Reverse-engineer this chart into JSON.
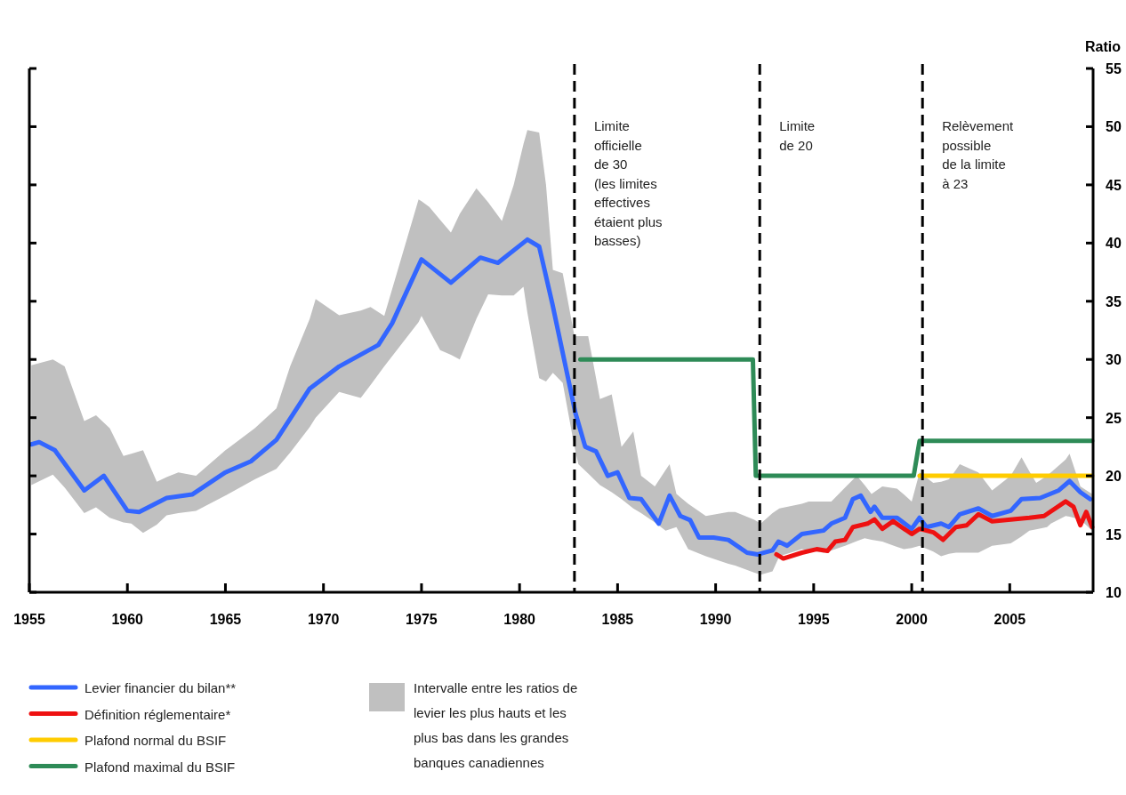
{
  "chart_data": {
    "type": "line",
    "ylabel": "Ratio",
    "xlim": [
      1955,
      2009.25
    ],
    "xticks": [
      1955,
      1960,
      1965,
      1970,
      1975,
      1980,
      1985,
      1990,
      1995,
      2000,
      2005
    ],
    "ylim": [
      10,
      55
    ],
    "yticks": [
      10,
      15,
      20,
      25,
      30,
      35,
      40,
      45,
      50,
      55
    ],
    "grid": false,
    "legend": "bottom",
    "marker": "none",
    "line_style": "solid",
    "series": [
      {
        "type": "area",
        "name": "Intervalle entre les ratios de levier les plus hauts et les plus bas dans les grandes banques canadiennes",
        "color": "#c0c0c0",
        "x": [
          1955.1,
          1956.2,
          1956.8,
          1957.8,
          1958.4,
          1959.1,
          1959.8,
          1960.2,
          1960.8,
          1961.5,
          1962.0,
          1962.6,
          1963.5,
          1965.0,
          1966.5,
          1967.6,
          1968.3,
          1969.3,
          1969.6,
          1970.8,
          1971.9,
          1972.4,
          1973.1,
          1974.85,
          1975.0,
          1975.4,
          1975.95,
          1976.5,
          1976.95,
          1977.8,
          1978.4,
          1979.1,
          1979.7,
          1980.2,
          1980.4,
          1981.0,
          1981.35,
          1981.7,
          1982.2,
          1982.8,
          1983.0,
          1983.5,
          1984.1,
          1984.7,
          1985.2,
          1985.8,
          1986.2,
          1986.9,
          1987.45,
          1987.65,
          1988.0,
          1988.6,
          1989.5,
          1990.65,
          1991.0,
          1991.95,
          1992.3,
          1992.9,
          1993.25,
          1994.4,
          1994.75,
          1995.5,
          1995.9,
          1996.6,
          1997.2,
          1997.6,
          1997.95,
          1998.5,
          1999.25,
          1999.6,
          2000.0,
          2000.4,
          2001.1,
          2001.5,
          2001.9,
          2002.25,
          2002.45,
          2003.4,
          2004.1,
          2005.05,
          2005.6,
          2006.0,
          2006.35,
          2006.9,
          2007.1,
          2007.85,
          2008.05,
          2008.6,
          2009.2
        ],
        "lower": [
          19.2,
          20.1,
          19.0,
          16.8,
          17.3,
          16.4,
          16.0,
          15.9,
          15.1,
          15.8,
          16.6,
          16.8,
          17.0,
          18.3,
          19.7,
          20.6,
          22.0,
          24.2,
          25.0,
          27.2,
          26.7,
          27.8,
          29.4,
          33.2,
          33.75,
          32.5,
          30.8,
          30.4,
          30.0,
          33.5,
          35.6,
          35.5,
          35.5,
          36.25,
          34.0,
          28.4,
          28.1,
          28.85,
          28.0,
          22.5,
          21.0,
          20.2,
          19.2,
          18.6,
          18.0,
          17.2,
          16.8,
          16.0,
          15.3,
          15.4,
          15.6,
          13.7,
          13.1,
          12.45,
          12.3,
          11.7,
          11.5,
          11.8,
          13.1,
          13.7,
          13.6,
          13.4,
          13.6,
          14.0,
          14.4,
          14.65,
          14.5,
          14.35,
          13.9,
          13.7,
          13.8,
          14.0,
          13.5,
          13.1,
          13.3,
          13.4,
          13.4,
          13.4,
          14.0,
          14.2,
          14.8,
          15.3,
          15.4,
          15.6,
          15.9,
          16.55,
          16.5,
          16.25,
          15.3
        ],
        "upper": [
          29.5,
          30.0,
          29.4,
          24.7,
          25.2,
          24.1,
          21.7,
          21.9,
          22.2,
          19.5,
          19.9,
          20.3,
          20.0,
          22.2,
          24.1,
          25.8,
          29.4,
          33.5,
          35.2,
          33.8,
          34.2,
          34.5,
          33.75,
          43.75,
          43.6,
          43.1,
          42.0,
          40.9,
          42.5,
          44.7,
          43.5,
          41.9,
          45.0,
          48.5,
          49.7,
          49.5,
          45.0,
          37.7,
          37.4,
          32.0,
          32.0,
          32.0,
          26.6,
          27.0,
          22.5,
          23.8,
          20.0,
          19.1,
          20.5,
          21.0,
          18.45,
          17.6,
          16.55,
          16.9,
          16.9,
          16.25,
          15.9,
          16.8,
          17.2,
          17.6,
          17.8,
          17.8,
          17.8,
          19.0,
          20.0,
          19.2,
          18.45,
          19.1,
          18.9,
          18.4,
          17.8,
          20.3,
          19.4,
          19.5,
          19.7,
          20.5,
          21.0,
          20.3,
          18.75,
          20.0,
          21.6,
          20.4,
          19.4,
          20.0,
          20.3,
          21.4,
          21.9,
          19.1,
          18.45
        ],
        "values": [
          null,
          null,
          null,
          null,
          null,
          null,
          null,
          null,
          null,
          null,
          null,
          null,
          null,
          null,
          null,
          null,
          null,
          null,
          null,
          null,
          null,
          null,
          null,
          null,
          null,
          null,
          null,
          null,
          null,
          null,
          null,
          null,
          null,
          null,
          null,
          null,
          null,
          null,
          null,
          null,
          null,
          null,
          null,
          null,
          null,
          null,
          null,
          null,
          null,
          null,
          null,
          null,
          null,
          null,
          null,
          null,
          null,
          null,
          null,
          null,
          null,
          null,
          null,
          null,
          null,
          null,
          null,
          null,
          null,
          null,
          null,
          null,
          null,
          null,
          null,
          null,
          null,
          null,
          null,
          null,
          null,
          null,
          null,
          null,
          null,
          null,
          null,
          null,
          null
        ]
      },
      {
        "name": "Levier financier du bilan**",
        "color": "#3366ff",
        "x": [
          1955.1,
          1955.5,
          1956.3,
          1957.8,
          1958.8,
          1960.0,
          1960.6,
          1962.0,
          1963.3,
          1965.0,
          1966.3,
          1967.6,
          1969.3,
          1970.8,
          1972.8,
          1973.5,
          1975.0,
          1976.5,
          1978.0,
          1978.9,
          1980.4,
          1981.0,
          1981.67,
          1982.85,
          1983.35,
          1983.9,
          1984.5,
          1985.0,
          1985.6,
          1986.2,
          1987.1,
          1987.65,
          1988.2,
          1988.7,
          1989.15,
          1989.9,
          1990.65,
          1991.6,
          1992.15,
          1992.9,
          1993.2,
          1993.65,
          1994.4,
          1995.5,
          1995.9,
          1996.6,
          1997.0,
          1997.4,
          1997.9,
          1998.1,
          1998.5,
          1999.25,
          2000.0,
          2000.4,
          2000.75,
          2001.5,
          2001.9,
          2002.45,
          2003.4,
          2004.1,
          2005.05,
          2005.6,
          2006.55,
          2007.5,
          2008.05,
          2008.6,
          2009.1
        ],
        "values": [
          22.7,
          22.9,
          22.2,
          18.75,
          20.0,
          17.0,
          16.9,
          18.1,
          18.4,
          20.3,
          21.25,
          23.1,
          27.5,
          29.4,
          31.25,
          33.1,
          38.6,
          36.6,
          38.75,
          38.3,
          40.3,
          39.7,
          34.8,
          25.4,
          22.5,
          22.1,
          20.0,
          20.3,
          18.1,
          18.0,
          15.9,
          18.3,
          16.55,
          16.2,
          14.7,
          14.7,
          14.5,
          13.4,
          13.25,
          13.6,
          14.35,
          14.0,
          15.0,
          15.3,
          15.9,
          16.4,
          18.0,
          18.3,
          16.9,
          17.35,
          16.4,
          16.4,
          15.45,
          16.4,
          15.6,
          15.9,
          15.6,
          16.7,
          17.2,
          16.55,
          17.0,
          18.0,
          18.1,
          18.75,
          19.55,
          18.6,
          18.0
        ]
      },
      {
        "name": "Définition réglementaire*",
        "color": "#ee1111",
        "x": [
          1993.1,
          1993.45,
          1994.4,
          1995.15,
          1995.7,
          1996.1,
          1996.6,
          1997.0,
          1997.75,
          1998.1,
          1998.5,
          1999.05,
          2000.0,
          2000.4,
          2001.1,
          2001.6,
          2002.25,
          2002.8,
          2003.4,
          2004.1,
          2005.05,
          2006.0,
          2006.75,
          2007.85,
          2008.25,
          2008.6,
          2008.9,
          2009.2
        ],
        "values": [
          13.25,
          12.9,
          13.4,
          13.7,
          13.55,
          14.35,
          14.5,
          15.6,
          15.9,
          16.25,
          15.45,
          16.1,
          15.0,
          15.45,
          15.15,
          14.5,
          15.6,
          15.75,
          16.7,
          16.1,
          16.25,
          16.4,
          16.55,
          17.8,
          17.35,
          15.75,
          16.9,
          15.6
        ]
      },
      {
        "name": "Plafond normal du BSIF",
        "color": "#ffcc00",
        "x": [
          2000.4,
          2009.2
        ],
        "values": [
          20,
          20
        ]
      },
      {
        "name": "Plafond maximal du BSIF",
        "color": "#2e8b57",
        "x": [
          1983.1,
          1991.9,
          1992.05,
          2000.1,
          2000.4,
          2009.2
        ],
        "values": [
          30,
          30,
          20,
          20,
          23,
          23
        ]
      }
    ],
    "ref_lines": [
      {
        "axis": "x",
        "value": 1982.8,
        "label": "Limite\nofficielle\nde 30\n(les limites\neffectives\nétaient plus\nbasses)",
        "color": "#000000",
        "line_style": "dashed"
      },
      {
        "axis": "x",
        "value": 1992.25,
        "label": "Limite\nde 20",
        "color": "#000000",
        "line_style": "dashed"
      },
      {
        "axis": "x",
        "value": 2000.55,
        "label": "Relèvement\npossible\nde la limite\nà 23",
        "color": "#000000",
        "line_style": "dashed"
      }
    ]
  }
}
